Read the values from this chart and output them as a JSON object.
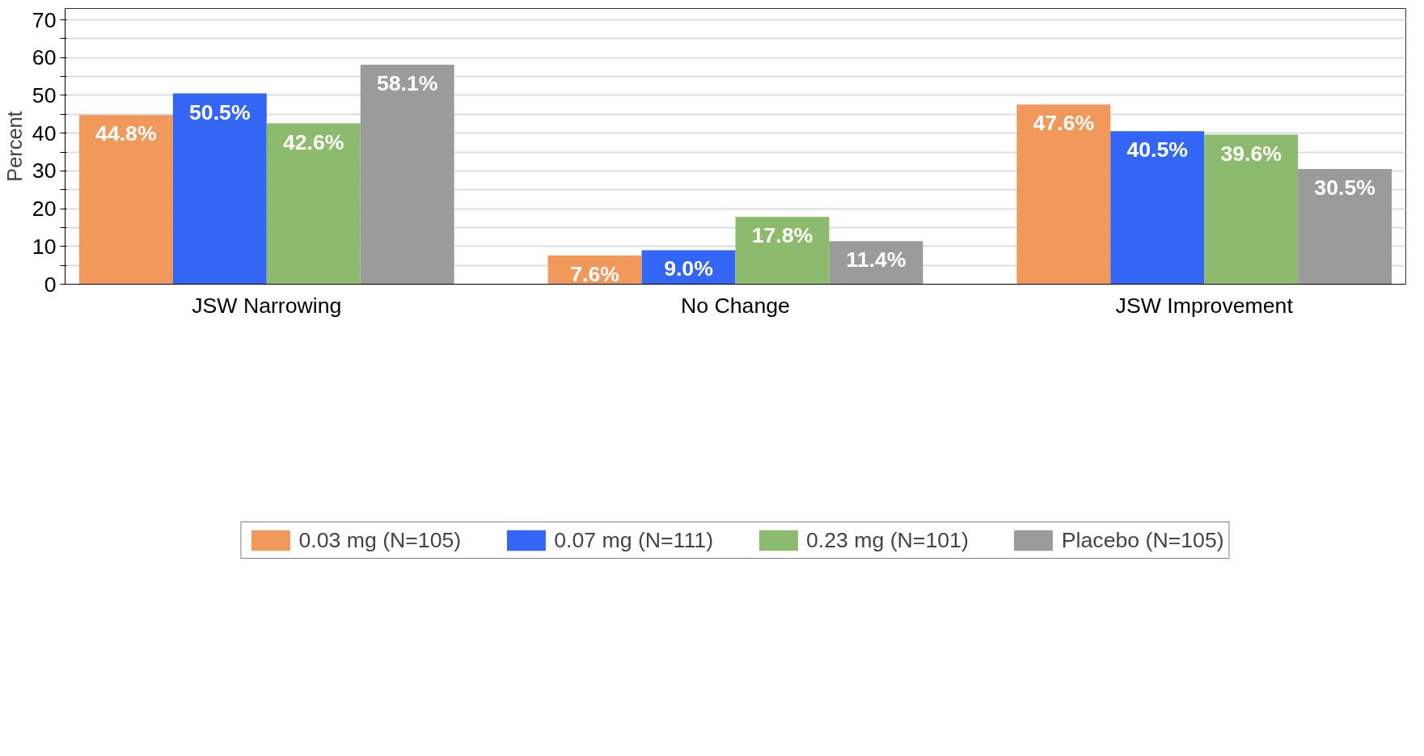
{
  "chart_data": {
    "type": "bar",
    "ylabel": "Percent",
    "categories": [
      "JSW Narrowing",
      "No Change",
      "JSW Improvement"
    ],
    "series": [
      {
        "name": "0.03 mg (N=105)",
        "color": "#f0995a",
        "values": [
          44.8,
          7.6,
          47.6
        ],
        "value_labels": [
          "44.8%",
          "7.6%",
          "47.6%"
        ]
      },
      {
        "name": "0.07 mg (N=111)",
        "color": "#3366f5",
        "values": [
          50.5,
          9.0,
          40.5
        ],
        "value_labels": [
          "50.5%",
          "9.0%",
          "40.5%"
        ]
      },
      {
        "name": "0.23 mg (N=101)",
        "color": "#8cbb6e",
        "values": [
          42.6,
          17.8,
          39.6
        ],
        "value_labels": [
          "42.6%",
          "17.8%",
          "39.6%"
        ]
      },
      {
        "name": "Placebo (N=105)",
        "color": "#9b9b9b",
        "values": [
          58.1,
          11.4,
          30.5
        ],
        "value_labels": [
          "58.1%",
          "11.4%",
          "30.5%"
        ]
      }
    ],
    "ylim": [
      0,
      73
    ],
    "yticks": [
      0,
      {
        "value": 5,
        "label": null
      },
      10,
      {
        "value": 15,
        "label": null
      },
      20,
      {
        "value": 25,
        "label": null
      },
      30,
      {
        "value": 35,
        "label": null
      },
      40,
      {
        "value": 45,
        "label": null
      },
      50,
      {
        "value": 55,
        "label": null
      },
      60,
      {
        "value": 65,
        "label": null
      },
      70
    ],
    "grid": "y",
    "legend": "bottom"
  }
}
